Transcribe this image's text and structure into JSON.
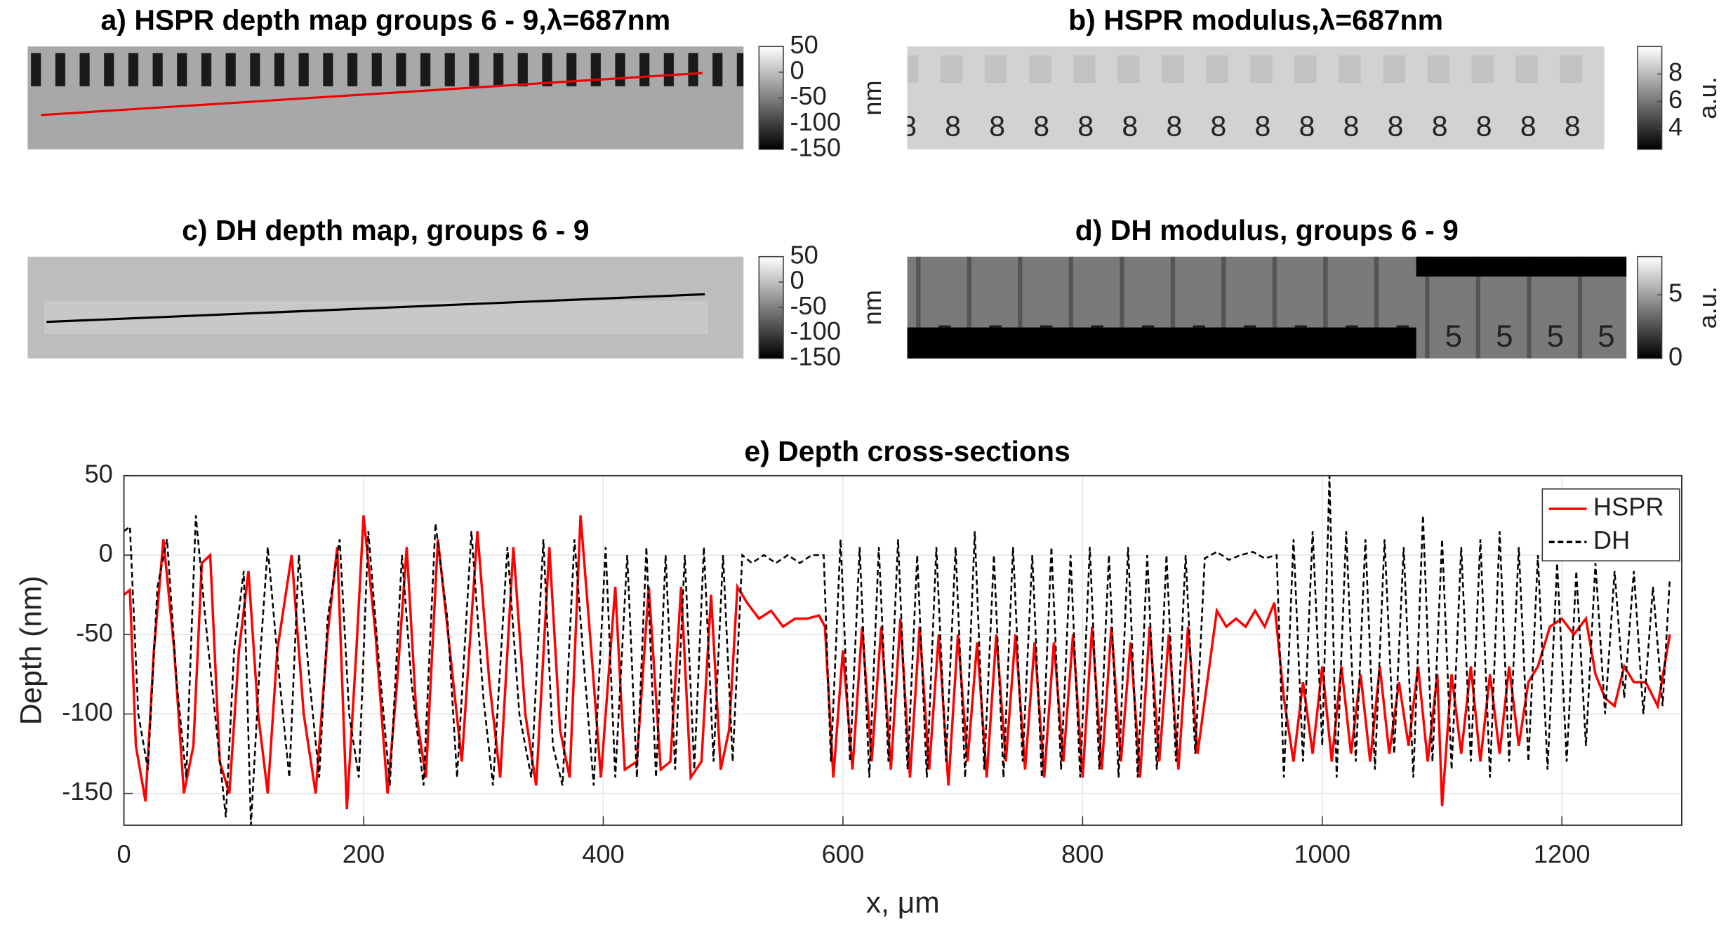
{
  "chart_data": [
    {
      "type": "image",
      "title": "a) HSPR depth map groups 6 - 9,λ=687nm",
      "colorbar_label": "nm",
      "clim": [
        -150,
        50
      ],
      "colorbar_ticks": [
        50,
        0,
        -50,
        -100,
        -150
      ]
    },
    {
      "type": "image",
      "title": "b) HSPR modulus,λ=687nm",
      "colorbar_label": "a.u.",
      "clim": [
        2.5,
        10
      ],
      "colorbar_ticks": [
        8,
        6,
        4
      ]
    },
    {
      "type": "image",
      "title": "c) DH depth map, groups 6 - 9",
      "colorbar_label": "nm",
      "clim": [
        -150,
        50
      ],
      "colorbar_ticks": [
        50,
        0,
        -50,
        -100,
        -150
      ]
    },
    {
      "type": "image",
      "title": "d) DH modulus, groups 6 - 9",
      "colorbar_label": "a.u.",
      "clim": [
        0,
        8
      ],
      "colorbar_ticks": [
        5,
        0
      ]
    },
    {
      "type": "line",
      "title": "e) Depth cross-sections",
      "xlabel": "x, μm",
      "ylabel": "Depth (nm)",
      "xlim": [
        0,
        1300
      ],
      "ylim": [
        -170,
        50
      ],
      "xticks": [
        0,
        200,
        400,
        600,
        800,
        1000,
        1200
      ],
      "yticks": [
        50,
        0,
        -50,
        -100,
        -150
      ],
      "grid": true,
      "legend": "upper right",
      "series": [
        {
          "name": "HSPR",
          "color": "#ff0000",
          "style": "solid",
          "x": [
            0,
            5,
            10,
            18,
            25,
            33,
            42,
            50,
            58,
            65,
            72,
            80,
            88,
            96,
            104,
            112,
            120,
            128,
            140,
            150,
            160,
            170,
            178,
            186,
            194,
            200,
            210,
            220,
            228,
            236,
            244,
            252,
            262,
            272,
            282,
            295,
            305,
            314,
            325,
            335,
            344,
            355,
            364,
            372,
            381,
            390,
            398,
            410,
            418,
            428,
            438,
            448,
            456,
            465,
            473,
            482,
            490,
            498,
            505,
            512,
            520,
            530,
            540,
            550,
            560,
            570,
            580,
            585,
            592,
            600,
            608,
            616,
            624,
            632,
            640,
            648,
            656,
            664,
            672,
            680,
            688,
            696,
            704,
            712,
            720,
            728,
            736,
            744,
            752,
            760,
            768,
            776,
            784,
            792,
            800,
            808,
            816,
            824,
            832,
            840,
            848,
            856,
            864,
            872,
            880,
            888,
            896,
            904,
            912,
            920,
            928,
            936,
            944,
            952,
            960,
            968,
            976,
            984,
            992,
            1000,
            1008,
            1016,
            1024,
            1032,
            1040,
            1048,
            1056,
            1064,
            1072,
            1080,
            1088,
            1096,
            1100,
            1108,
            1116,
            1124,
            1132,
            1140,
            1148,
            1156,
            1164,
            1172,
            1180,
            1190,
            1200,
            1210,
            1220,
            1228,
            1236,
            1244,
            1252,
            1260,
            1270,
            1280,
            1290
          ],
          "values": [
            -25,
            -22,
            -120,
            -155,
            -60,
            10,
            -60,
            -150,
            -120,
            -5,
            0,
            -130,
            -150,
            -60,
            -10,
            -100,
            -150,
            -60,
            0,
            -100,
            -150,
            -50,
            5,
            -160,
            -60,
            25,
            -50,
            -150,
            -80,
            5,
            -100,
            -140,
            10,
            -60,
            -130,
            15,
            -80,
            -140,
            5,
            -100,
            -145,
            5,
            -110,
            -140,
            25,
            -60,
            -140,
            -20,
            -135,
            -130,
            -20,
            -135,
            -130,
            -20,
            -140,
            -130,
            -25,
            -135,
            -110,
            -20,
            -30,
            -40,
            -35,
            -45,
            -40,
            -40,
            -38,
            -45,
            -140,
            -60,
            -135,
            -45,
            -130,
            -45,
            -135,
            -40,
            -140,
            -45,
            -135,
            -50,
            -145,
            -50,
            -130,
            -55,
            -140,
            -50,
            -130,
            -50,
            -135,
            -55,
            -140,
            -55,
            -130,
            -50,
            -140,
            -45,
            -135,
            -45,
            -130,
            -55,
            -140,
            -45,
            -130,
            -50,
            -135,
            -45,
            -125,
            -80,
            -35,
            -45,
            -40,
            -45,
            -35,
            -45,
            -30,
            -90,
            -130,
            -80,
            -125,
            -70,
            -130,
            -70,
            -125,
            -75,
            -130,
            -70,
            -125,
            -80,
            -120,
            -70,
            -130,
            -75,
            -158,
            -75,
            -125,
            -70,
            -130,
            -75,
            -125,
            -70,
            -120,
            -80,
            -70,
            -45,
            -40,
            -50,
            -40,
            -75,
            -90,
            -95,
            -70,
            -80,
            -80,
            -95,
            -50
          ]
        },
        {
          "name": "DH",
          "color": "#000000",
          "style": "dashed",
          "x": [
            0,
            5,
            12,
            20,
            28,
            36,
            44,
            52,
            60,
            68,
            76,
            85,
            92,
            100,
            106,
            114,
            120,
            130,
            138,
            146,
            155,
            163,
            170,
            180,
            188,
            196,
            204,
            212,
            222,
            232,
            240,
            250,
            260,
            270,
            278,
            290,
            300,
            308,
            320,
            330,
            340,
            350,
            358,
            366,
            376,
            384,
            392,
            402,
            410,
            420,
            428,
            436,
            444,
            452,
            460,
            468,
            476,
            484,
            492,
            500,
            508,
            516,
            524,
            534,
            544,
            554,
            564,
            574,
            584,
            590,
            598,
            606,
            614,
            622,
            630,
            638,
            646,
            654,
            662,
            670,
            678,
            686,
            694,
            702,
            710,
            718,
            726,
            734,
            742,
            750,
            758,
            766,
            774,
            782,
            790,
            798,
            806,
            814,
            822,
            830,
            838,
            846,
            854,
            862,
            870,
            878,
            886,
            894,
            902,
            912,
            922,
            932,
            942,
            952,
            962,
            968,
            976,
            984,
            992,
            1000,
            1006,
            1012,
            1020,
            1028,
            1036,
            1044,
            1052,
            1060,
            1068,
            1076,
            1084,
            1092,
            1100,
            1108,
            1116,
            1124,
            1132,
            1140,
            1148,
            1156,
            1164,
            1172,
            1180,
            1188,
            1196,
            1204,
            1212,
            1220,
            1228,
            1236,
            1244,
            1252,
            1260,
            1268,
            1276,
            1284,
            1290
          ],
          "values": [
            15,
            18,
            -100,
            -135,
            -20,
            10,
            -80,
            -140,
            25,
            -40,
            -100,
            -165,
            -60,
            -10,
            -170,
            -60,
            5,
            -80,
            -140,
            0,
            -80,
            -140,
            -40,
            10,
            -100,
            -140,
            15,
            -60,
            -145,
            0,
            -80,
            -145,
            20,
            -40,
            -140,
            15,
            -90,
            -145,
            5,
            -100,
            -140,
            10,
            -120,
            -145,
            10,
            -70,
            -145,
            5,
            -140,
            0,
            -140,
            5,
            -140,
            0,
            -135,
            0,
            -135,
            5,
            -130,
            0,
            -130,
            0,
            -5,
            0,
            -5,
            0,
            -5,
            0,
            0,
            -130,
            10,
            -130,
            5,
            -140,
            5,
            -130,
            10,
            -135,
            0,
            -140,
            5,
            -130,
            5,
            -140,
            15,
            -135,
            0,
            -140,
            5,
            -130,
            0,
            -140,
            5,
            -135,
            0,
            -140,
            5,
            -135,
            0,
            -140,
            5,
            -140,
            0,
            -135,
            0,
            -130,
            0,
            -125,
            -2,
            2,
            -3,
            0,
            2,
            -2,
            0,
            -140,
            10,
            -130,
            15,
            -120,
            50,
            -140,
            15,
            -130,
            10,
            -135,
            10,
            -125,
            5,
            -140,
            25,
            -130,
            10,
            -135,
            5,
            -130,
            10,
            -140,
            15,
            -130,
            5,
            -130,
            0,
            -135,
            -5,
            -130,
            -10,
            -120,
            -5,
            -100,
            -10,
            -90,
            -10,
            -100,
            -20,
            -95,
            -15
          ]
        }
      ]
    }
  ]
}
